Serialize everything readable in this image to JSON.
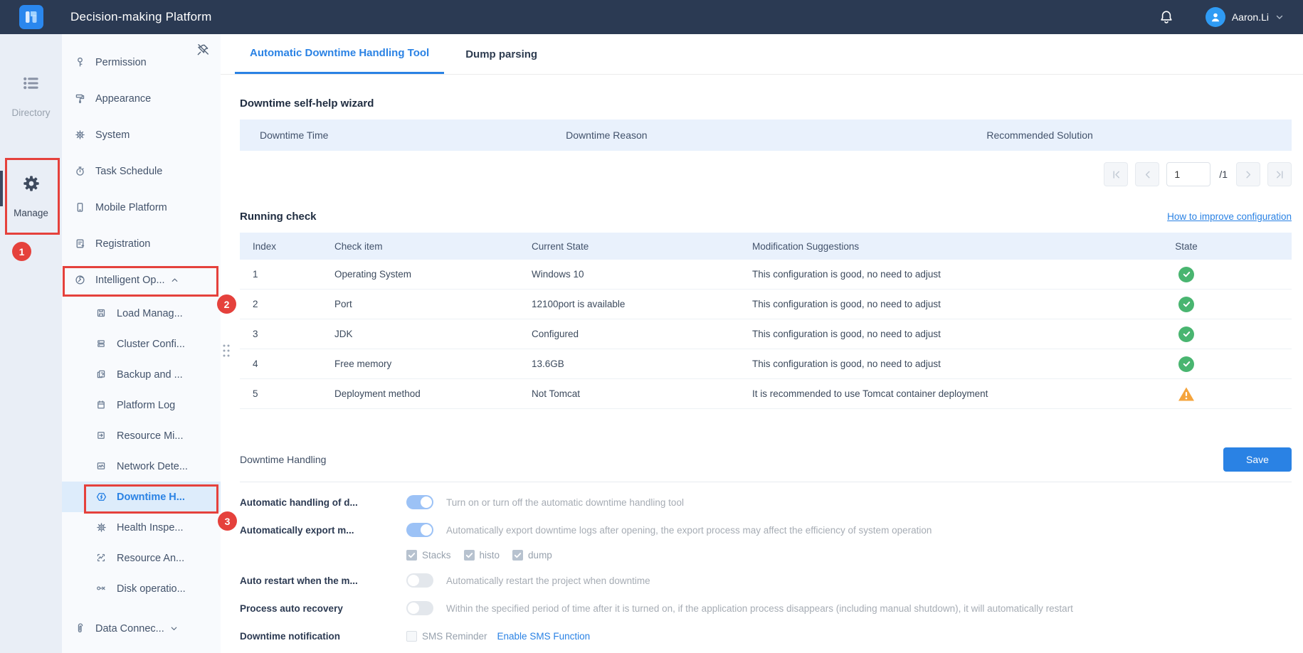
{
  "colors": {
    "accent": "#2a82e4",
    "topbar": "#2b3a53",
    "success": "#49b570",
    "warning": "#f5a43c",
    "annotation": "#e5413c",
    "toggle_on": "#9cc2f6",
    "table_header_bg": "#e9f1fc"
  },
  "topbar": {
    "title": "Decision-making Platform",
    "user": "Aaron.Li"
  },
  "rail": {
    "items": [
      {
        "label": "Directory",
        "icon": "list"
      },
      {
        "label": "Manage",
        "icon": "gear-solid"
      }
    ]
  },
  "annotations": {
    "step1": "1",
    "step2": "2",
    "step3": "3"
  },
  "sidebar": {
    "items": [
      {
        "label": "Permission",
        "icon": "key",
        "level": 1
      },
      {
        "label": "Appearance",
        "icon": "roller",
        "level": 1
      },
      {
        "label": "System",
        "icon": "gear",
        "level": 1
      },
      {
        "label": "Task Schedule",
        "icon": "stopwatch",
        "level": 1
      },
      {
        "label": "Mobile Platform",
        "icon": "mobile",
        "level": 1
      },
      {
        "label": "Registration",
        "icon": "register",
        "level": 1
      },
      {
        "label": "Intelligent Op...",
        "icon": "wrench",
        "level": 1,
        "chevron": "up"
      },
      {
        "label": "Load Manag...",
        "icon": "floppy",
        "level": 2
      },
      {
        "label": "Cluster Confi...",
        "icon": "cluster",
        "level": 2
      },
      {
        "label": "Backup and ...",
        "icon": "backup",
        "level": 2
      },
      {
        "label": "Platform Log",
        "icon": "calendar",
        "level": 2
      },
      {
        "label": "Resource Mi...",
        "icon": "export-doc",
        "level": 2
      },
      {
        "label": "Network Dete...",
        "icon": "monitor",
        "level": 2
      },
      {
        "label": "Downtime H...",
        "icon": "hexagon-bolt",
        "level": 2,
        "selected": true
      },
      {
        "label": "Health Inspe...",
        "icon": "gear",
        "level": 2
      },
      {
        "label": "Resource An...",
        "icon": "analysis",
        "level": 2
      },
      {
        "label": "Disk operatio...",
        "icon": "nodes",
        "level": 2
      },
      {
        "label": "Data Connec...",
        "icon": "paperclip",
        "level": 1,
        "chevron": "down",
        "gap_top": true
      }
    ]
  },
  "tabs": [
    {
      "label": "Automatic Downtime Handling Tool",
      "active": true
    },
    {
      "label": "Dump parsing",
      "active": false
    }
  ],
  "wizard": {
    "title": "Downtime self-help wizard",
    "columns": [
      "Downtime Time",
      "Downtime Reason",
      "Recommended Solution"
    ],
    "pagination": {
      "page": "1",
      "total": "/1"
    }
  },
  "running_check": {
    "title": "Running check",
    "link": "How to improve configuration",
    "columns": [
      "Index",
      "Check item",
      "Current State",
      "Modification Suggestions",
      "State"
    ],
    "rows": [
      {
        "index": "1",
        "item": "Operating System",
        "state": "Windows 10",
        "suggestion": "This configuration is good, no need to adjust",
        "status": "ok"
      },
      {
        "index": "2",
        "item": "Port",
        "state": "12100port is available",
        "suggestion": "This configuration is good, no need to adjust",
        "status": "ok"
      },
      {
        "index": "3",
        "item": "JDK",
        "state": "Configured",
        "suggestion": "This configuration is good, no need to adjust",
        "status": "ok"
      },
      {
        "index": "4",
        "item": "Free memory",
        "state": "13.6GB",
        "suggestion": "This configuration is good, no need to adjust",
        "status": "ok"
      },
      {
        "index": "5",
        "item": "Deployment method",
        "state": "Not Tomcat",
        "suggestion": "It is recommended to use Tomcat container deployment",
        "status": "warn"
      }
    ]
  },
  "downtime_handling": {
    "title": "Downtime Handling",
    "save_label": "Save",
    "rows": [
      {
        "type": "toggle",
        "label": "Automatic handling of d...",
        "on": true,
        "helper": "Turn on or turn off the automatic downtime handling tool"
      },
      {
        "type": "toggle",
        "label": "Automatically export m...",
        "on": true,
        "helper": "Automatically export downtime logs after opening, the export process may affect the efficiency of system operation"
      },
      {
        "type": "checks",
        "options": [
          {
            "label": "Stacks",
            "checked": true
          },
          {
            "label": "histo",
            "checked": true
          },
          {
            "label": "dump",
            "checked": true
          }
        ]
      },
      {
        "type": "toggle",
        "label": "Auto restart when the m...",
        "on": false,
        "helper": "Automatically restart the project when downtime"
      },
      {
        "type": "toggle",
        "label": "Process auto recovery",
        "on": false,
        "helper": "Within the specified period of time after it is turned on, if the application process disappears (including manual shutdown), it will automatically restart"
      },
      {
        "type": "notification",
        "label": "Downtime notification",
        "checkbox": {
          "label": "SMS Reminder",
          "checked": false
        },
        "link": "Enable SMS Function"
      }
    ]
  }
}
